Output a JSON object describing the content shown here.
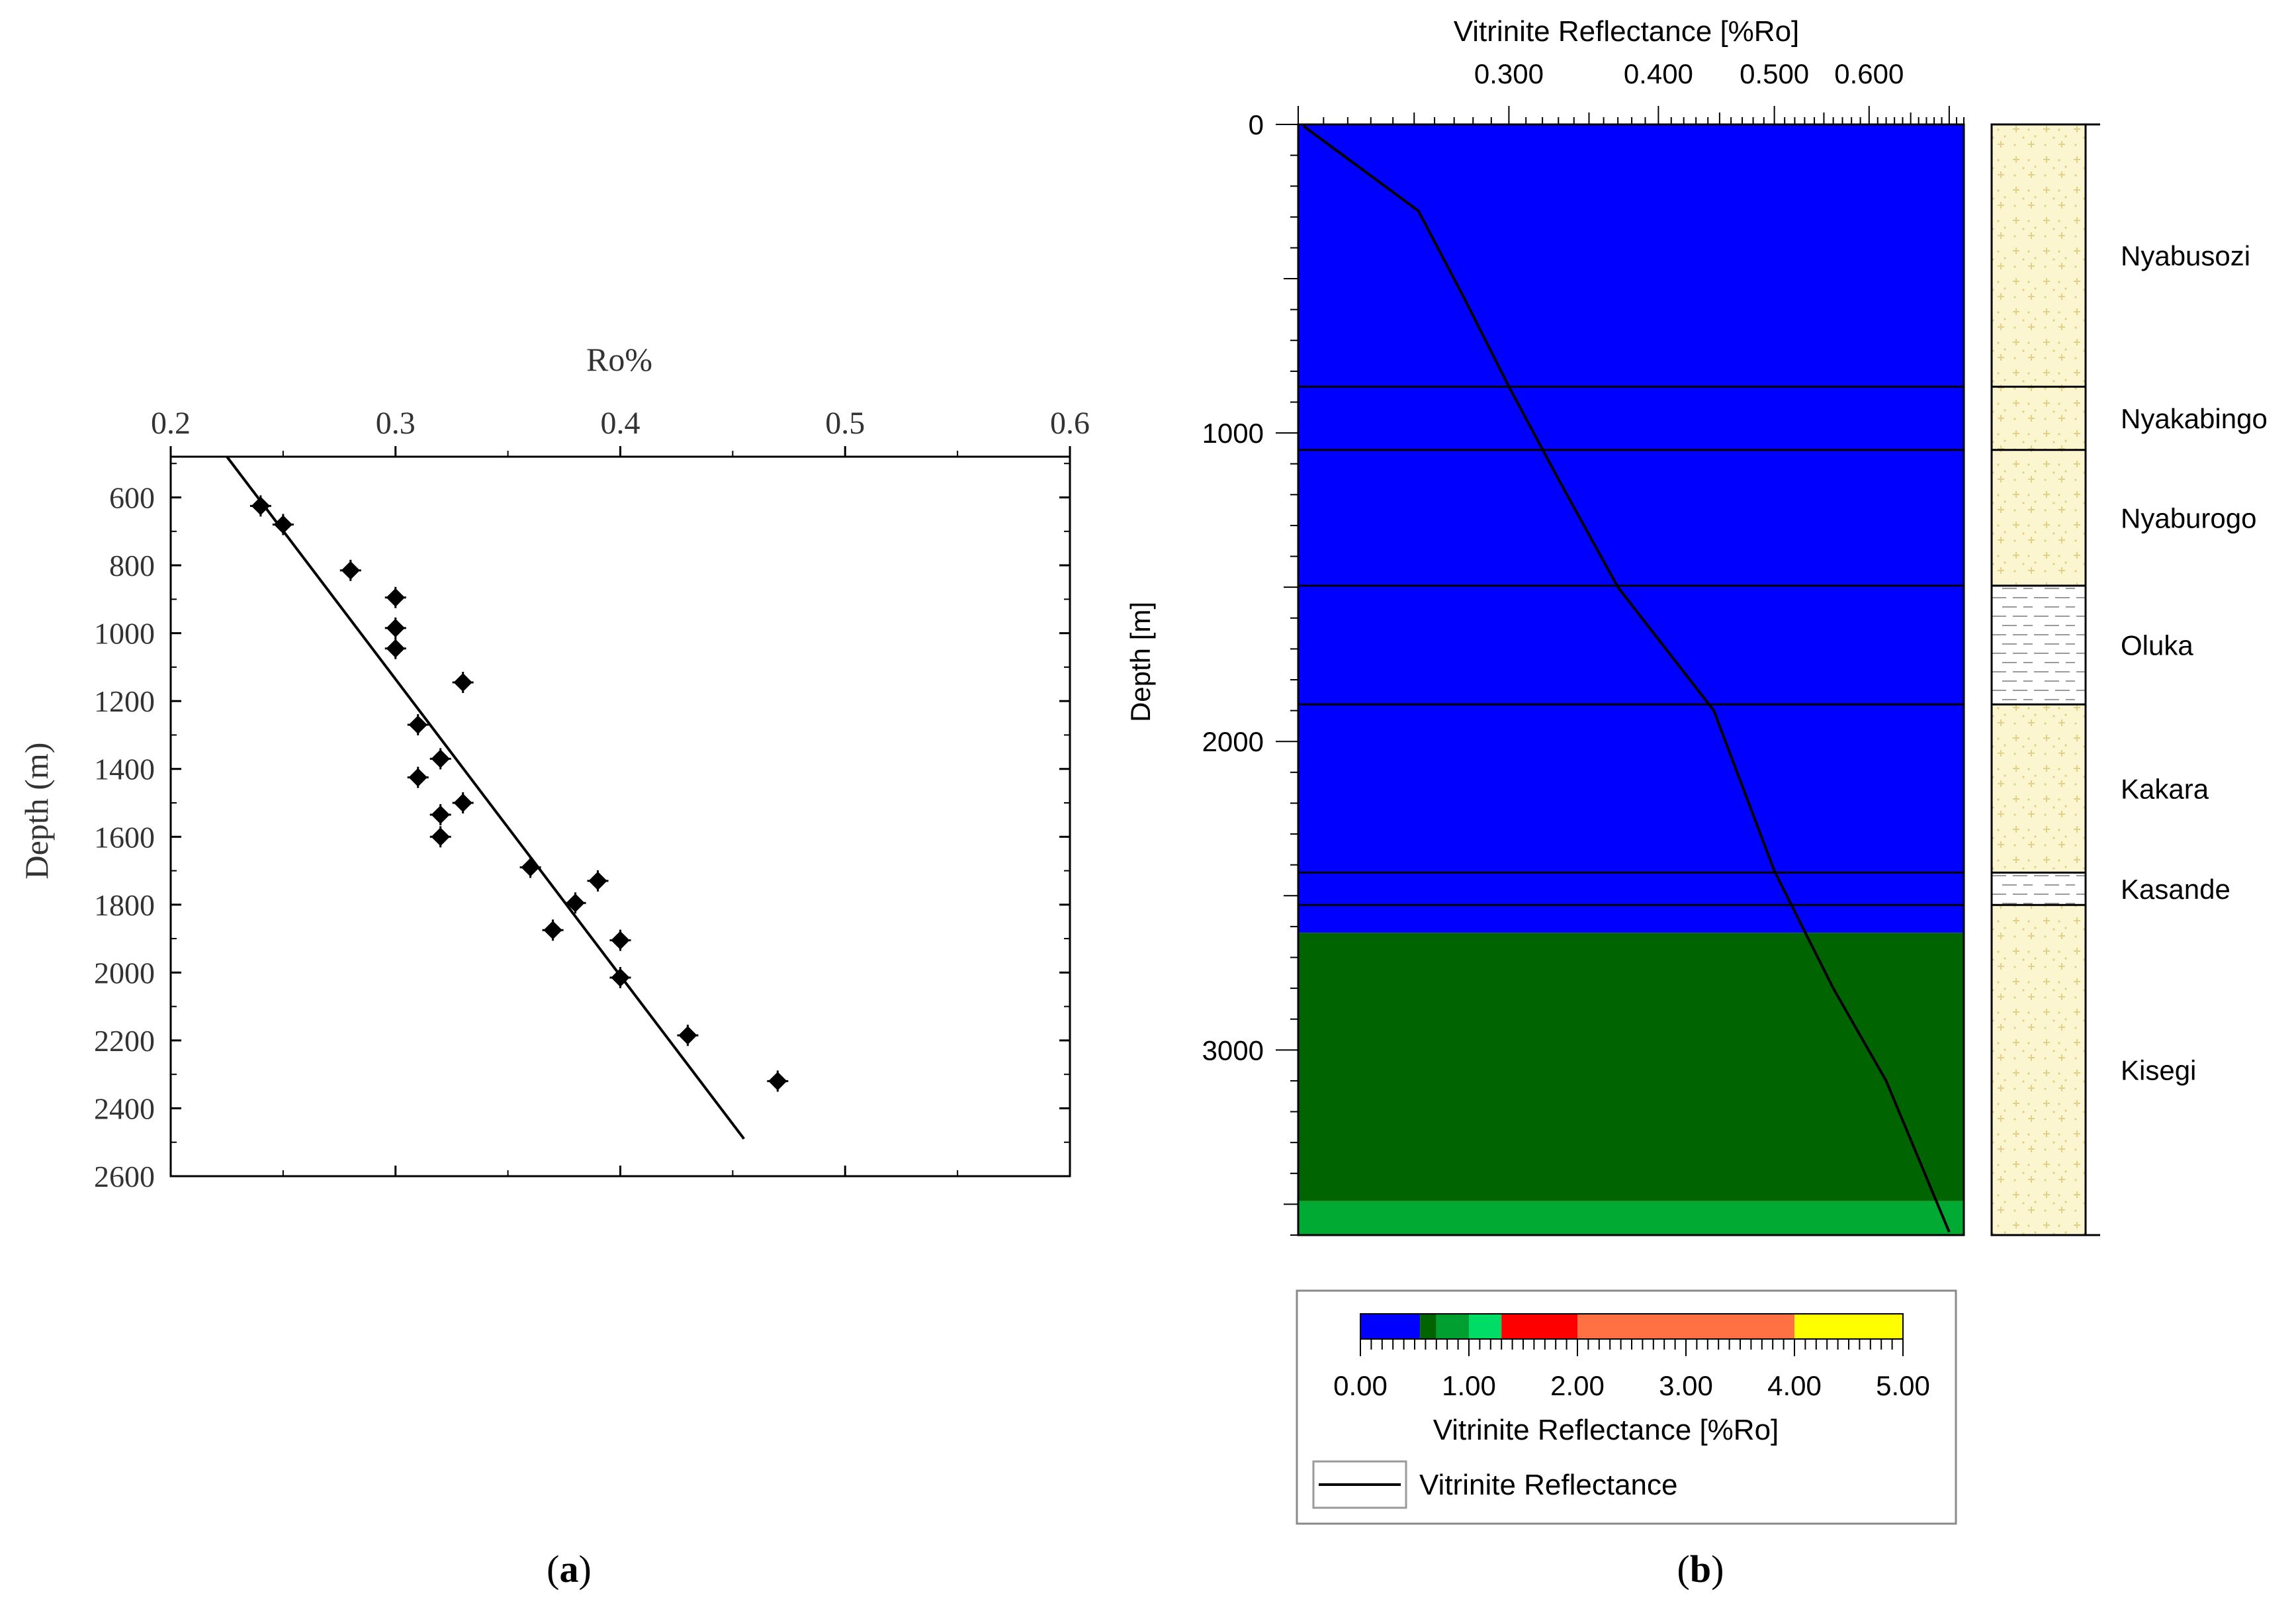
{
  "panel_a": {
    "caption": "(a)",
    "caption_letter": "a"
  },
  "panel_b": {
    "caption": "(b)",
    "caption_letter": "b"
  },
  "colors": {
    "zone_blue": "#0000ff",
    "zone_dark_green": "#006400",
    "zone_green": "#00aa33",
    "strat_fill": "#fbf6cf",
    "strat_pattern": "#ead48a",
    "line": "#000000"
  },
  "chart_data": [
    {
      "type": "scatter",
      "title": "",
      "xlabel": "Ro%",
      "ylabel": "Depth (m)",
      "x_axis_position": "top",
      "y_axis_inverted": true,
      "xlim": [
        0.2,
        0.6
      ],
      "ylim": [
        480,
        2600
      ],
      "xticks": [
        0.2,
        0.3,
        0.4,
        0.5,
        0.6
      ],
      "xtick_labels": [
        "0.2",
        "0.3",
        "0.4",
        "0.5",
        "0.6"
      ],
      "yticks": [
        600,
        800,
        1000,
        1200,
        1400,
        1600,
        1800,
        2000,
        2200,
        2400,
        2600
      ],
      "ytick_labels": [
        "600",
        "800",
        "1000",
        "1200",
        "1400",
        "1600",
        "1800",
        "2000",
        "2200",
        "2400",
        "2600"
      ],
      "grid": false,
      "points": [
        {
          "x": 0.24,
          "y": 625
        },
        {
          "x": 0.25,
          "y": 680
        },
        {
          "x": 0.28,
          "y": 815
        },
        {
          "x": 0.3,
          "y": 895
        },
        {
          "x": 0.3,
          "y": 985
        },
        {
          "x": 0.3,
          "y": 1045
        },
        {
          "x": 0.33,
          "y": 1145
        },
        {
          "x": 0.31,
          "y": 1270
        },
        {
          "x": 0.32,
          "y": 1370
        },
        {
          "x": 0.31,
          "y": 1425
        },
        {
          "x": 0.33,
          "y": 1500
        },
        {
          "x": 0.32,
          "y": 1535
        },
        {
          "x": 0.32,
          "y": 1600
        },
        {
          "x": 0.36,
          "y": 1690
        },
        {
          "x": 0.39,
          "y": 1730
        },
        {
          "x": 0.38,
          "y": 1795
        },
        {
          "x": 0.37,
          "y": 1875
        },
        {
          "x": 0.4,
          "y": 1905
        },
        {
          "x": 0.4,
          "y": 2015
        },
        {
          "x": 0.43,
          "y": 2185
        },
        {
          "x": 0.47,
          "y": 2320
        }
      ],
      "trend_line": [
        {
          "x": 0.225,
          "y": 480
        },
        {
          "x": 0.455,
          "y": 2490
        }
      ]
    },
    {
      "type": "line",
      "title": "Vitrinite Reflectance [%Ro]",
      "x_axis_position": "top",
      "x_scale": "log",
      "xlim": [
        0.2,
        0.72
      ],
      "xtick_labels": [
        "0.300",
        "0.400",
        "0.500",
        "0.600"
      ],
      "xticks": [
        0.3,
        0.4,
        0.5,
        0.6
      ],
      "ylabel": "Depth [m]",
      "y_axis_inverted": true,
      "ylim": [
        0,
        3600
      ],
      "yticks": [
        0,
        1000,
        2000,
        3000
      ],
      "ytick_labels": [
        "0",
        "1000",
        "2000",
        "3000"
      ],
      "series": [
        {
          "name": "Vitrinite Reflectance",
          "points": [
            {
              "x": 0.202,
              "y": 5
            },
            {
              "x": 0.252,
              "y": 280
            },
            {
              "x": 0.275,
              "y": 560
            },
            {
              "x": 0.3,
              "y": 850
            },
            {
              "x": 0.33,
              "y": 1150
            },
            {
              "x": 0.37,
              "y": 1500
            },
            {
              "x": 0.445,
              "y": 1900
            },
            {
              "x": 0.5,
              "y": 2420
            },
            {
              "x": 0.56,
              "y": 2800
            },
            {
              "x": 0.62,
              "y": 3100
            },
            {
              "x": 0.7,
              "y": 3590
            }
          ]
        }
      ],
      "maturity_zones": [
        {
          "from": 0,
          "to": 2620,
          "color": "#0000ff"
        },
        {
          "from": 2620,
          "to": 3490,
          "color": "#006400"
        },
        {
          "from": 3490,
          "to": 3600,
          "color": "#00aa33"
        }
      ],
      "formation_boundaries": [
        850,
        1055,
        1495,
        1880,
        2425,
        2530
      ],
      "formations": [
        {
          "name": "Nyabusozi",
          "top": 0,
          "base": 850,
          "lithology": "sandstone"
        },
        {
          "name": "Nyakabingo",
          "top": 850,
          "base": 1055,
          "lithology": "sandstone"
        },
        {
          "name": "Nyaburogo",
          "top": 1055,
          "base": 1495,
          "lithology": "sandstone"
        },
        {
          "name": "Oluka",
          "top": 1495,
          "base": 1880,
          "lithology": "shale"
        },
        {
          "name": "Kakara",
          "top": 1880,
          "base": 2425,
          "lithology": "sandstone"
        },
        {
          "name": "Kasande",
          "top": 2425,
          "base": 2530,
          "lithology": "shale"
        },
        {
          "name": "Kisegi",
          "top": 2530,
          "base": 3600,
          "lithology": "sandstone"
        }
      ],
      "color_scale": {
        "label": "Vitrinite Reflectance [%Ro]",
        "range": [
          0,
          5
        ],
        "tick_labels": [
          "0.00",
          "1.00",
          "2.00",
          "3.00",
          "4.00",
          "5.00"
        ],
        "segments": [
          {
            "from": 0.0,
            "to": 0.55,
            "color": "#0000ff"
          },
          {
            "from": 0.55,
            "to": 0.7,
            "color": "#006400"
          },
          {
            "from": 0.7,
            "to": 1.0,
            "color": "#00a030"
          },
          {
            "from": 1.0,
            "to": 1.3,
            "color": "#00dd66"
          },
          {
            "from": 1.3,
            "to": 2.0,
            "color": "#ff0000"
          },
          {
            "from": 2.0,
            "to": 4.0,
            "color": "#ff7043"
          },
          {
            "from": 4.0,
            "to": 5.0,
            "color": "#ffff00"
          }
        ]
      },
      "legend": {
        "placement": "bottom",
        "entries": [
          "Vitrinite Reflectance"
        ]
      }
    }
  ]
}
